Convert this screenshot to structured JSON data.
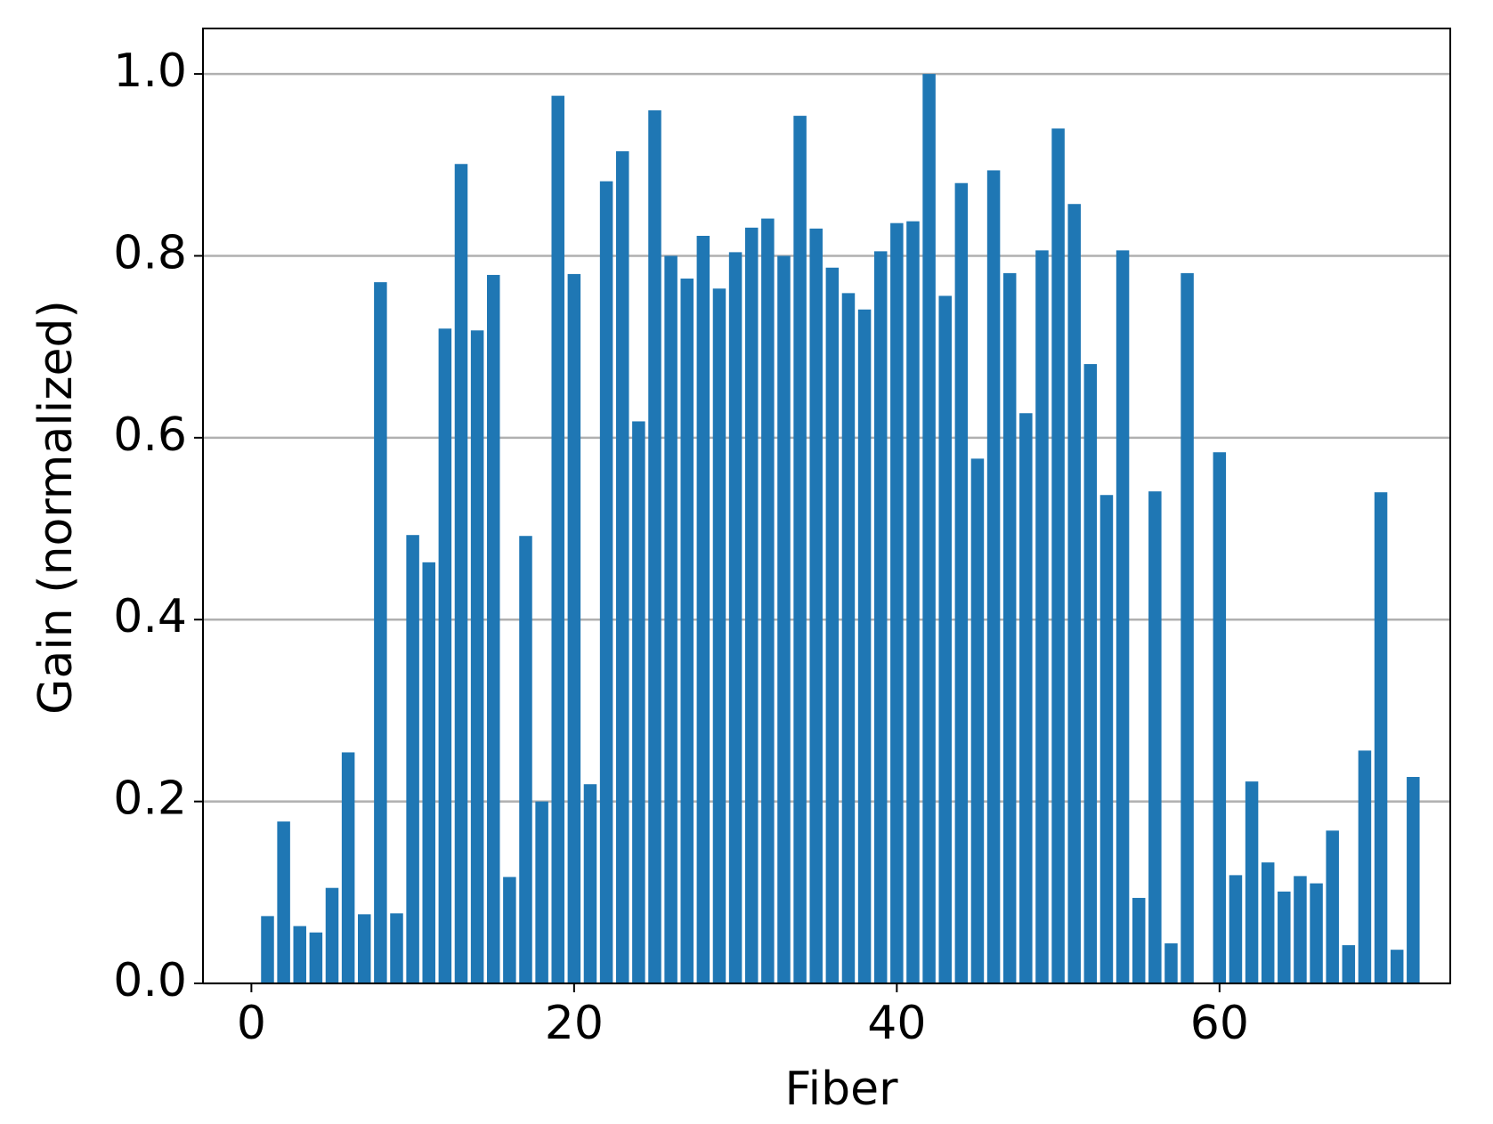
{
  "chart_data": {
    "type": "bar",
    "xlabel": "Fiber",
    "ylabel": "Gain (normalized)",
    "x": [
      1,
      2,
      3,
      4,
      5,
      6,
      7,
      8,
      9,
      10,
      11,
      12,
      13,
      14,
      15,
      16,
      17,
      18,
      19,
      20,
      21,
      22,
      23,
      24,
      25,
      26,
      27,
      28,
      29,
      30,
      31,
      32,
      33,
      34,
      35,
      36,
      37,
      38,
      39,
      40,
      41,
      42,
      43,
      44,
      45,
      46,
      47,
      48,
      49,
      50,
      51,
      52,
      53,
      54,
      55,
      56,
      57,
      58,
      59,
      60,
      61,
      62,
      63,
      64,
      65,
      66,
      67,
      68,
      69,
      70,
      71,
      72
    ],
    "values": [
      0.074,
      0.178,
      0.063,
      0.056,
      0.105,
      0.254,
      0.076,
      0.771,
      0.077,
      0.493,
      0.463,
      0.72,
      0.901,
      0.718,
      0.779,
      0.117,
      0.492,
      0.2,
      0.976,
      0.78,
      0.219,
      0.882,
      0.915,
      0.618,
      0.96,
      0.8,
      0.775,
      0.822,
      0.764,
      0.804,
      0.831,
      0.841,
      0.8,
      0.954,
      0.83,
      0.787,
      0.759,
      0.741,
      0.805,
      0.836,
      0.838,
      1.0,
      0.756,
      0.88,
      0.577,
      0.894,
      0.781,
      0.627,
      0.806,
      0.94,
      0.857,
      0.681,
      0.537,
      0.806,
      0.094,
      0.541,
      0.044,
      0.781,
      0,
      0.584,
      0.119,
      0.222,
      0.133,
      0.101,
      0.118,
      0.11,
      0.168,
      0.042,
      0.256,
      0.54,
      0.037,
      0.227
    ],
    "color": "#1f77b4",
    "xlim": [
      -3,
      74.3
    ],
    "ylim": [
      0,
      1.05
    ],
    "xticks": [
      0,
      20,
      40,
      60
    ],
    "yticks": [
      {
        "value": 0,
        "label": "0.0"
      },
      {
        "value": 0.2,
        "label": "0.2"
      },
      {
        "value": 0.4,
        "label": "0.4"
      },
      {
        "value": 0.6,
        "label": "0.6"
      },
      {
        "value": 0.8,
        "label": "0.8"
      },
      {
        "value": 1,
        "label": "1.0"
      }
    ],
    "grid": "y"
  }
}
